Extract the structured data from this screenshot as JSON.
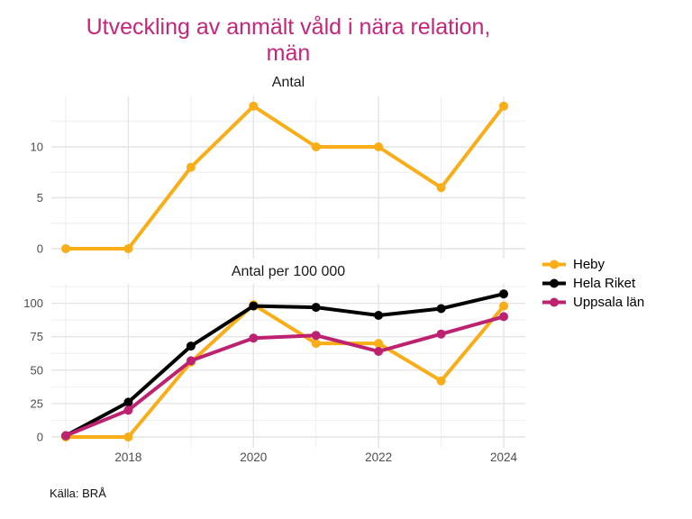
{
  "title_lines": [
    "Utveckling av anmält våld i nära relation,",
    "män"
  ],
  "title_color": "#C4267C",
  "source": "Källa: BRÅ",
  "legend": {
    "items": [
      {
        "label": "Heby",
        "color": "#F9AD17"
      },
      {
        "label": "Hela Riket",
        "color": "#000000"
      },
      {
        "label": "Uppsala län",
        "color": "#BD2271"
      }
    ]
  },
  "axis_text_color": "#4D4D4D",
  "grid_major_color": "#E4E4E4",
  "grid_minor_color": "#EDEDED",
  "chart_data": [
    {
      "type": "line",
      "title": "Antal",
      "x": [
        2017,
        2018,
        2019,
        2020,
        2021,
        2022,
        2023,
        2024
      ],
      "x_tick_labels": [],
      "yticks": [
        0,
        5,
        10
      ],
      "ylim": [
        0,
        15
      ],
      "grid": true,
      "legend_position": "right",
      "series": [
        {
          "name": "Heby",
          "color": "#F9AD17",
          "values": [
            0,
            0,
            8,
            14,
            10,
            10,
            6,
            14
          ]
        }
      ]
    },
    {
      "type": "line",
      "title": "Antal per 100 000",
      "x": [
        2017,
        2018,
        2019,
        2020,
        2021,
        2022,
        2023,
        2024
      ],
      "x_tick_labels": [
        "2018",
        "2020",
        "2022",
        "2024"
      ],
      "yticks": [
        0,
        25,
        50,
        75,
        100
      ],
      "ylim": [
        0,
        113
      ],
      "grid": true,
      "legend_position": "right",
      "series": [
        {
          "name": "Heby",
          "color": "#F9AD17",
          "values": [
            0,
            0,
            56,
            99,
            70,
            70,
            42,
            98
          ]
        },
        {
          "name": "Hela Riket",
          "color": "#000000",
          "values": [
            1,
            26,
            68,
            98,
            97,
            91,
            96,
            107
          ]
        },
        {
          "name": "Uppsala län",
          "color": "#BD2271",
          "values": [
            1,
            20,
            57,
            74,
            76,
            64,
            77,
            90
          ]
        }
      ]
    }
  ]
}
